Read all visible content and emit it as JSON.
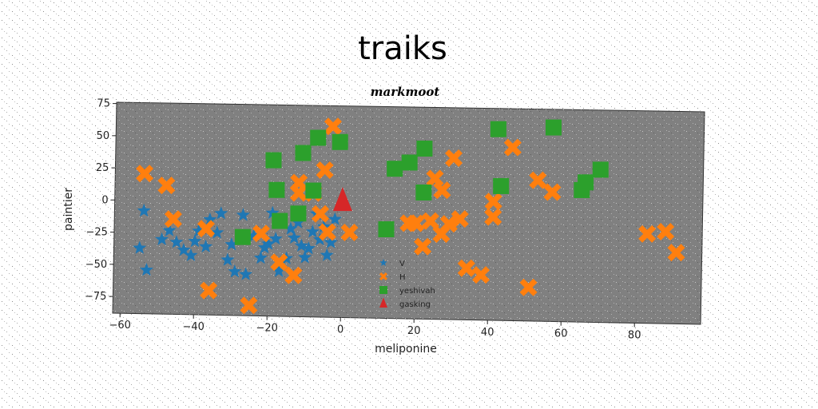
{
  "chart_data": {
    "type": "scatter",
    "title": "traiks",
    "subtitle": "markmoot",
    "xlabel": "meliponine",
    "ylabel": "paintier",
    "xlim": [
      -62,
      98
    ],
    "ylim": [
      -88,
      76
    ],
    "xticks": [
      "−60",
      "−40",
      "−20",
      "0",
      "20",
      "40",
      "60",
      "80"
    ],
    "xtick_values": [
      -60,
      -40,
      -20,
      0,
      20,
      40,
      60,
      80
    ],
    "yticks": [
      "75",
      "50",
      "25",
      "0",
      "−25",
      "−50",
      "−75"
    ],
    "ytick_values": [
      75,
      50,
      25,
      0,
      -25,
      -50,
      -75
    ],
    "grid": false,
    "legend_position": "lower-center",
    "colors": {
      "page_background": "#ffffff",
      "plot_background": "#808080",
      "V": "#1f77b4",
      "H": "#ff7f0e",
      "yeshivah": "#2ca02c",
      "gasking": "#d62728"
    },
    "series": [
      {
        "name": "V",
        "marker": "star",
        "color": "#1f77b4",
        "points": [
          [
            -54,
            -8
          ],
          [
            -55,
            -37
          ],
          [
            -53,
            -54
          ],
          [
            -49,
            -30
          ],
          [
            -47,
            -23
          ],
          [
            -45,
            -32
          ],
          [
            -43,
            -38
          ],
          [
            -41,
            -42
          ],
          [
            -40,
            -31
          ],
          [
            -39,
            -23
          ],
          [
            -37,
            -35
          ],
          [
            -36,
            -14
          ],
          [
            -34,
            -24
          ],
          [
            -33,
            -9
          ],
          [
            -31,
            -45
          ],
          [
            -30,
            -33
          ],
          [
            -29,
            -54
          ],
          [
            -27,
            -10
          ],
          [
            -26,
            -56
          ],
          [
            -24,
            -26
          ],
          [
            -22,
            -43
          ],
          [
            -21,
            -35
          ],
          [
            -20,
            -32
          ],
          [
            -19,
            -8
          ],
          [
            -18,
            -28
          ],
          [
            -17,
            -53
          ],
          [
            -15,
            -43
          ],
          [
            -14,
            -20
          ],
          [
            -13,
            -27
          ],
          [
            -12,
            -15
          ],
          [
            -11,
            -33
          ],
          [
            -10,
            -42
          ],
          [
            -9,
            -35
          ],
          [
            -8,
            -22
          ],
          [
            -7,
            -8
          ],
          [
            -6,
            -28
          ],
          [
            -5,
            -18
          ],
          [
            -4,
            -40
          ],
          [
            -3,
            -30
          ],
          [
            -2,
            -12
          ]
        ]
      },
      {
        "name": "H",
        "marker": "x",
        "color": "#ff7f0e",
        "points": [
          [
            -54,
            21
          ],
          [
            -48,
            12
          ],
          [
            -46,
            -14
          ],
          [
            -37,
            -21
          ],
          [
            -36,
            -69
          ],
          [
            -25,
            -80
          ],
          [
            -22,
            -24
          ],
          [
            -17,
            -46
          ],
          [
            -13,
            -56
          ],
          [
            -12,
            16
          ],
          [
            -12,
            8
          ],
          [
            -8,
            8
          ],
          [
            -6,
            -8
          ],
          [
            -5,
            26
          ],
          [
            -3,
            60
          ],
          [
            -4,
            -22
          ],
          [
            2,
            -22
          ],
          [
            18,
            -14
          ],
          [
            20,
            -14
          ],
          [
            22,
            -32
          ],
          [
            24,
            -12
          ],
          [
            25,
            21
          ],
          [
            27,
            12
          ],
          [
            27,
            -22
          ],
          [
            29,
            -14
          ],
          [
            30,
            37
          ],
          [
            32,
            -10
          ],
          [
            34,
            -48
          ],
          [
            38,
            -53
          ],
          [
            41,
            4
          ],
          [
            41,
            -8
          ],
          [
            46,
            46
          ],
          [
            51,
            -62
          ],
          [
            53,
            21
          ],
          [
            57,
            12
          ],
          [
            83,
            -19
          ],
          [
            88,
            -17
          ],
          [
            91,
            -33
          ]
        ]
      },
      {
        "name": "yeshivah",
        "marker": "square",
        "color": "#2ca02c",
        "points": [
          [
            -27,
            -27
          ],
          [
            -19,
            33
          ],
          [
            -18,
            10
          ],
          [
            -17,
            -14
          ],
          [
            -12,
            -8
          ],
          [
            -11,
            39
          ],
          [
            -8,
            10
          ],
          [
            -7,
            51
          ],
          [
            -1,
            48
          ],
          [
            12,
            -19
          ],
          [
            14,
            28
          ],
          [
            18,
            33
          ],
          [
            22,
            44
          ],
          [
            22,
            10
          ],
          [
            42,
            60
          ],
          [
            43,
            16
          ],
          [
            57,
            62
          ],
          [
            65,
            14
          ],
          [
            66,
            20
          ],
          [
            70,
            30
          ]
        ]
      },
      {
        "name": "gasking",
        "marker": "triangle",
        "color": "#d62728",
        "points": [
          [
            0,
            2
          ]
        ]
      }
    ],
    "legend_entries": [
      "V",
      "H",
      "yeshivah",
      "gasking"
    ]
  }
}
